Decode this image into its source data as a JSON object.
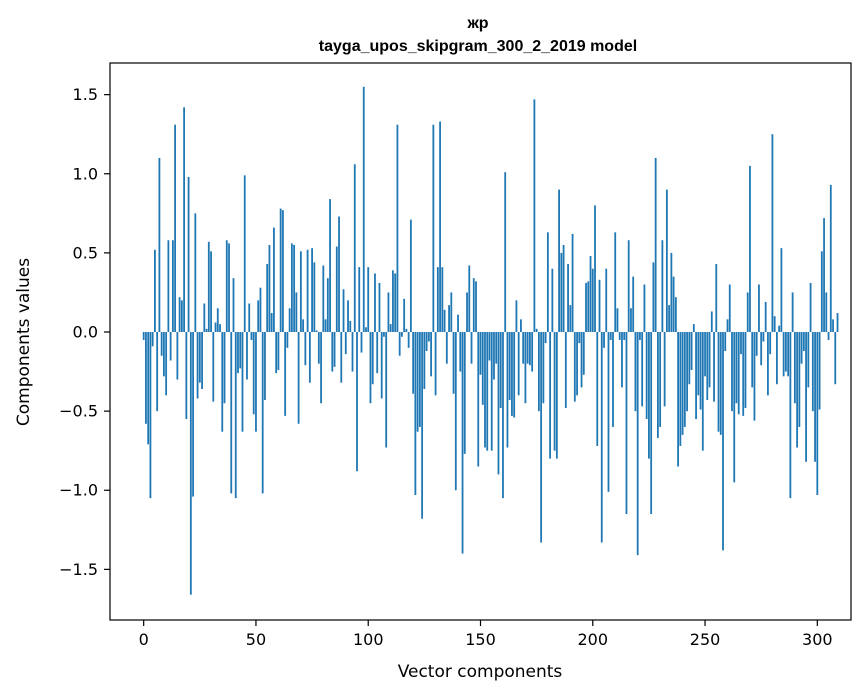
{
  "chart_data": {
    "type": "bar",
    "title": "жр",
    "subtitle": "tayga_upos_skipgram_300_2_2019 model",
    "xlabel": "Vector components",
    "ylabel": "Components values",
    "xlim": [
      -15,
      315
    ],
    "ylim": [
      -1.82,
      1.7
    ],
    "xticks": [
      0,
      50,
      100,
      150,
      200,
      250,
      300
    ],
    "yticks": [
      -1.5,
      -1.0,
      -0.5,
      0.0,
      0.5,
      1.0,
      1.5
    ],
    "ytick_labels": [
      "−1.5",
      "−1.0",
      "−0.5",
      "0.0",
      "0.5",
      "1.0",
      "1.5"
    ],
    "bar_color": "#1f77b4",
    "grid": false,
    "values": [
      -0.05,
      -0.58,
      -0.71,
      -1.05,
      -0.09,
      0.52,
      -0.5,
      1.1,
      -0.15,
      -0.28,
      -0.4,
      0.58,
      -0.18,
      0.58,
      1.31,
      -0.3,
      0.22,
      0.2,
      1.42,
      -0.55,
      0.98,
      -1.66,
      -1.04,
      0.75,
      -0.42,
      -0.32,
      -0.36,
      0.18,
      0.02,
      0.57,
      0.51,
      -0.44,
      0.06,
      0.15,
      0.05,
      -0.63,
      -0.45,
      0.58,
      0.56,
      -1.02,
      0.34,
      -1.05,
      -0.26,
      -0.23,
      -0.63,
      0.99,
      -0.3,
      0.18,
      -0.05,
      -0.52,
      -0.63,
      0.2,
      0.28,
      -1.02,
      -0.43,
      0.43,
      0.55,
      0.12,
      0.66,
      -0.26,
      -0.24,
      0.78,
      0.77,
      -0.53,
      -0.1,
      0.15,
      0.56,
      0.55,
      0.25,
      -0.58,
      0.51,
      0.08,
      -0.21,
      0.52,
      -0.32,
      0.53,
      0.44,
      0.01,
      -0.2,
      -0.45,
      0.42,
      0.08,
      0.34,
      0.84,
      -0.25,
      -0.22,
      0.54,
      0.73,
      -0.32,
      0.27,
      -0.14,
      0.2,
      0.07,
      -0.25,
      1.06,
      -0.88,
      0.41,
      -0.13,
      1.55,
      0.03,
      0.41,
      -0.45,
      -0.33,
      0.37,
      -0.26,
      0.31,
      -0.42,
      -0.03,
      -0.73,
      0.25,
      0.05,
      0.39,
      0.37,
      1.31,
      -0.15,
      -0.03,
      0.21,
      0.02,
      -0.1,
      0.71,
      -0.39,
      -1.03,
      -0.63,
      -0.6,
      -1.18,
      -0.36,
      -0.12,
      -0.06,
      -0.28,
      1.31,
      -0.4,
      0.41,
      1.33,
      0.41,
      0.14,
      -0.2,
      0.17,
      0.25,
      -0.39,
      -1.0,
      0.11,
      -0.25,
      -1.4,
      -0.77,
      0.25,
      0.42,
      -0.2,
      0.34,
      0.32,
      -0.85,
      -0.27,
      -0.46,
      -0.73,
      -0.75,
      -0.18,
      -0.75,
      -0.3,
      -0.2,
      -0.9,
      -0.48,
      -1.05,
      1.01,
      -0.73,
      -0.43,
      -0.53,
      -0.54,
      0.2,
      -0.4,
      0.08,
      -0.2,
      -0.45,
      -0.2,
      -0.21,
      -0.25,
      1.47,
      0.02,
      -0.5,
      -1.33,
      -0.45,
      -0.07,
      0.63,
      -0.8,
      0.4,
      -0.75,
      -0.8,
      0.9,
      0.5,
      0.55,
      -0.48,
      0.43,
      0.17,
      0.62,
      -0.44,
      -0.4,
      -0.07,
      -0.35,
      -0.27,
      0.31,
      0.32,
      0.48,
      0.4,
      0.8,
      -0.72,
      0.33,
      -1.33,
      -0.1,
      0.4,
      -1.01,
      -0.05,
      -0.6,
      0.63,
      0.15,
      -0.05,
      -0.35,
      -0.05,
      -1.15,
      0.58,
      0.15,
      0.35,
      -0.5,
      -1.41,
      -0.05,
      -0.47,
      0.3,
      -0.55,
      -0.8,
      -1.15,
      0.44,
      1.1,
      -0.67,
      -0.6,
      0.58,
      -0.47,
      0.9,
      0.17,
      0.5,
      0.35,
      0.22,
      -0.85,
      -0.72,
      -0.65,
      -0.6,
      -0.5,
      -0.33,
      -0.24,
      0.05,
      -0.55,
      -0.4,
      -0.49,
      -0.75,
      -0.28,
      -0.43,
      -0.35,
      0.13,
      -0.44,
      0.43,
      -0.63,
      -0.65,
      -1.38,
      -0.12,
      0.08,
      0.3,
      -0.5,
      -0.95,
      -0.45,
      -0.52,
      -0.14,
      -0.53,
      -0.48,
      0.25,
      1.05,
      -0.35,
      -0.56,
      -0.15,
      0.3,
      -0.21,
      -0.06,
      0.19,
      -0.4,
      -0.14,
      1.25,
      0.1,
      -0.33,
      0.04,
      0.53,
      -0.28,
      -0.25,
      -0.28,
      -1.05,
      0.25,
      -0.45,
      -0.73,
      -0.6,
      -0.2,
      -0.12,
      -0.82,
      -0.35,
      0.31,
      -0.5,
      -0.82,
      -1.03,
      -0.49,
      0.51,
      0.72,
      0.25,
      -0.05,
      0.93,
      0.08,
      -0.33,
      0.12
    ]
  }
}
